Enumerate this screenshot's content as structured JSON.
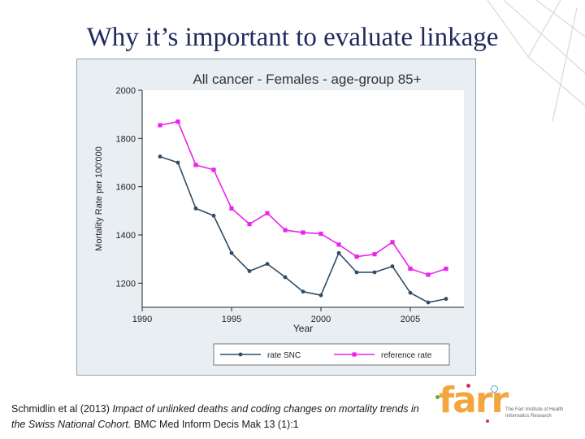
{
  "slide": {
    "title": "Why it’s important to evaluate linkage"
  },
  "citation": {
    "authors": "Schmidlin et al (2013)",
    "title_italic": "Impact of unlinked deaths and coding changes on mortality trends in the Swiss National Cohort.",
    "journal": "BMC Med Inform Decis Mak 13 (1):1"
  },
  "logo": {
    "word": "farr",
    "subtitle": "The Farr Institute of Health Informatics Research"
  },
  "colors": {
    "title": "#1f2a5c",
    "snc_series": "#2f4b66",
    "reference_series": "#ee22ee",
    "plot_region": "#e9eef3",
    "logo_orange": "#f3a640"
  },
  "chart_data": {
    "type": "line",
    "title": "All cancer - Females - age-group 85+",
    "xlabel": "Year",
    "ylabel": "Mortality Rate per 100'000",
    "xlim": [
      1990,
      2008
    ],
    "ylim": [
      1100,
      2000
    ],
    "xticks": [
      1990,
      1995,
      2000,
      2005
    ],
    "yticks": [
      1200,
      1400,
      1600,
      1800,
      2000
    ],
    "grid": false,
    "legend_position": "bottom",
    "x": [
      1991,
      1992,
      1993,
      1994,
      1995,
      1996,
      1997,
      1998,
      1999,
      2000,
      2001,
      2002,
      2003,
      2004,
      2005,
      2006,
      2007
    ],
    "series": [
      {
        "name": "rate SNC",
        "color": "#2f4b66",
        "marker": "circle",
        "values": [
          1725,
          1700,
          1510,
          1480,
          1325,
          1250,
          1280,
          1225,
          1165,
          1150,
          1325,
          1245,
          1245,
          1270,
          1160,
          1120,
          1135
        ]
      },
      {
        "name": "reference rate",
        "color": "#ee22ee",
        "marker": "square",
        "values": [
          1855,
          1870,
          1690,
          1670,
          1510,
          1445,
          1490,
          1420,
          1410,
          1405,
          1360,
          1310,
          1320,
          1370,
          1260,
          1235,
          1260
        ]
      }
    ]
  }
}
